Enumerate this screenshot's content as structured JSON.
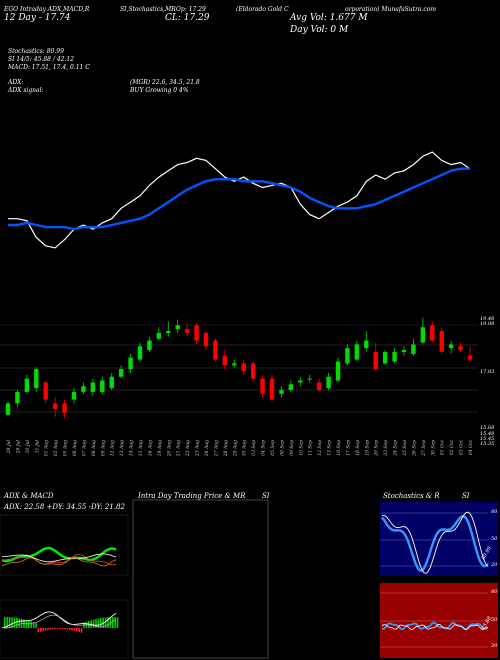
{
  "header": {
    "line1a": "EGO Intraday ADX,MACD,R",
    "line1b": "SI,Stochastics,MR",
    "line1c": "(Eldorado Gold C",
    "line1d": "orporation) MunafaSutra.com",
    "open_label": "Op: 17.29",
    "line2a": "12  Day - 17.74",
    "close_label": "CL: 17.29",
    "avg_vol": "Avg Vol: 1.677 M",
    "day_vol": "Day Vol: 0   M",
    "stoch_line": "Stochastics: 80.99",
    "si_line": "SI 14/5: 45.88 / 42.12",
    "macd_line": "MACD: 17.51, 17.4, 0.11 C",
    "adx_line": "ADX: ",
    "adx_values": "(MGR) 22.6, 34.5, 21.8",
    "adx_signal": "ADX  signal:",
    "adx_signal_val": "BUY Growing 0 4%"
  },
  "price_axis": {
    "label_top1": "19.48",
    "label_top2": "19.08",
    "label_mid": "17.03",
    "label_low1": "15.68",
    "label_low2": "15.48",
    "label_low3": "15.45",
    "label_low4": "15.35"
  },
  "dates": [
    "28 Jul",
    "29 Jul",
    "30 Jul",
    "31 Jul",
    "01 Aug",
    "02 Aug",
    "05 Aug",
    "06 Aug",
    "07 Aug",
    "08 Aug",
    "09 Aug",
    "12 Aug",
    "13 Aug",
    "14 Aug",
    "15 Aug",
    "16 Aug",
    "19 Aug",
    "20 Aug",
    "21 Aug",
    "22 Aug",
    "23 Aug",
    "26 Aug",
    "27 Aug",
    "28 Aug",
    "29 Aug",
    "30 Aug",
    "03 Sep",
    "04 Sep",
    "05 Sep",
    "06 Sep",
    "09 Sep",
    "10 Sep",
    "11 Sep",
    "12 Sep",
    "13 Sep",
    "16 Sep",
    "17 Sep",
    "18 Sep",
    "19 Sep",
    "20 Sep",
    "23 Sep",
    "24 Sep",
    "25 Sep",
    "26 Sep",
    "27 Sep",
    "30 Sep",
    "01 Oct",
    "02 Oct",
    "03 Oct",
    "04 Oct"
  ],
  "panels": {
    "adx_title": "ADX  & MACD",
    "adx_values": "ADX: 22.58  +DY: 34.55  -DY: 21.82",
    "mr_title": "Intra  Day Trading Price  & MR",
    "mr_si": "SI",
    "stoch_title": "Stochastics & R",
    "stoch_si": "SI",
    "stoch_tick_80": "80",
    "stoch_tick_50": "50",
    "stoch_tick_20": "20",
    "stoch_val": "80.99",
    "rsi_tick_80": "80",
    "rsi_tick_50": "50",
    "rsi_tick_20": "20",
    "rsi_val": "45.88"
  },
  "colors": {
    "bull": "#00dd00",
    "bear": "#ff0000",
    "ma": "#0055ff",
    "price_line": "#ffffff",
    "stoch_bg": "#000066",
    "rsi_bg": "#990000",
    "mr_border": "#555555"
  },
  "chart_data": [
    {
      "type": "line",
      "title": "EGO Intraday ADX,MACD,RSI,Stochastics,MRSI",
      "series": [
        {
          "values": [
            17.55,
            17.55,
            17.5,
            17.1,
            16.9,
            16.85,
            17.05,
            17.3,
            17.4,
            17.3,
            17.45,
            17.55,
            17.8,
            17.95,
            18.1,
            18.35,
            18.55,
            18.7,
            18.85,
            18.9,
            19.0,
            18.95,
            18.75,
            18.55,
            18.45,
            18.55,
            18.4,
            18.3,
            18.35,
            18.4,
            18.3,
            17.9,
            17.65,
            17.55,
            17.7,
            17.85,
            17.95,
            18.1,
            18.45,
            18.6,
            18.5,
            18.65,
            18.7,
            18.85,
            19.05,
            19.15,
            18.95,
            18.85,
            18.9,
            18.75
          ]
        },
        {
          "values": [
            17.4,
            17.4,
            17.45,
            17.4,
            17.35,
            17.35,
            17.35,
            17.3,
            17.35,
            17.35,
            17.35,
            17.4,
            17.45,
            17.5,
            17.55,
            17.65,
            17.8,
            17.95,
            18.1,
            18.25,
            18.35,
            18.45,
            18.5,
            18.5,
            18.5,
            18.45,
            18.45,
            18.45,
            18.4,
            18.35,
            18.3,
            18.2,
            18.05,
            17.95,
            17.85,
            17.8,
            17.8,
            17.8,
            17.85,
            17.9,
            18.0,
            18.1,
            18.2,
            18.3,
            18.4,
            18.5,
            18.6,
            18.7,
            18.75,
            18.75
          ]
        }
      ]
    },
    {
      "type": "bar",
      "title": "EGO daily candles",
      "categories": [
        "28 Jul",
        "29 Jul",
        "30 Jul",
        "31 Jul",
        "01 Aug",
        "02 Aug",
        "05 Aug",
        "06 Aug",
        "07 Aug",
        "08 Aug",
        "09 Aug",
        "12 Aug",
        "13 Aug",
        "14 Aug",
        "15 Aug",
        "16 Aug",
        "19 Aug",
        "20 Aug",
        "21 Aug",
        "22 Aug",
        "23 Aug",
        "26 Aug",
        "27 Aug",
        "28 Aug",
        "29 Aug",
        "30 Aug",
        "03 Sep",
        "04 Sep",
        "05 Sep",
        "06 Sep",
        "09 Sep",
        "10 Sep",
        "11 Sep",
        "12 Sep",
        "13 Sep",
        "16 Sep",
        "17 Sep",
        "18 Sep",
        "19 Sep",
        "20 Sep",
        "23 Sep",
        "24 Sep",
        "25 Sep",
        "26 Sep",
        "27 Sep",
        "30 Sep",
        "01 Oct",
        "02 Oct",
        "03 Oct",
        "04 Oct"
      ],
      "open": [
        15.9,
        16.2,
        16.5,
        16.6,
        16.75,
        16.2,
        16.2,
        16.3,
        16.5,
        16.5,
        16.5,
        16.6,
        16.9,
        17.1,
        17.35,
        17.6,
        17.9,
        18.05,
        18.15,
        18.15,
        18.25,
        18.05,
        17.85,
        17.45,
        17.2,
        17.25,
        17.25,
        16.85,
        16.85,
        16.45,
        16.55,
        16.75,
        16.85,
        16.75,
        16.6,
        16.8,
        17.25,
        17.35,
        17.65,
        17.55,
        17.25,
        17.3,
        17.55,
        17.5,
        17.8,
        18.25,
        18.1,
        17.65,
        17.7,
        17.45
      ],
      "close": [
        16.2,
        16.5,
        16.85,
        17.1,
        16.3,
        16.05,
        15.95,
        16.5,
        16.65,
        16.75,
        16.8,
        16.9,
        17.1,
        17.4,
        17.7,
        17.85,
        18.05,
        18.1,
        18.25,
        18.05,
        17.85,
        17.7,
        17.35,
        17.2,
        17.25,
        17.05,
        16.85,
        16.45,
        16.3,
        16.55,
        16.7,
        16.8,
        16.85,
        16.55,
        16.9,
        17.3,
        17.65,
        17.75,
        17.85,
        17.1,
        17.55,
        17.55,
        17.6,
        17.75,
        18.2,
        17.85,
        17.55,
        17.75,
        17.6,
        17.35
      ],
      "high": [
        16.25,
        16.55,
        16.95,
        17.15,
        16.8,
        16.35,
        16.3,
        16.6,
        16.75,
        16.85,
        16.9,
        17.0,
        17.2,
        17.5,
        17.8,
        17.95,
        18.2,
        18.35,
        18.4,
        18.3,
        18.3,
        18.1,
        17.9,
        17.6,
        17.35,
        17.35,
        17.3,
        16.95,
        16.95,
        16.65,
        16.8,
        16.9,
        16.95,
        16.85,
        17.0,
        17.4,
        17.75,
        17.85,
        18.1,
        17.8,
        17.6,
        17.65,
        17.7,
        17.9,
        18.45,
        18.35,
        18.2,
        17.85,
        17.8,
        17.7
      ],
      "low": [
        15.85,
        16.1,
        16.45,
        16.5,
        16.2,
        15.85,
        15.8,
        16.2,
        16.45,
        16.4,
        16.45,
        16.55,
        16.85,
        17.0,
        17.3,
        17.55,
        17.85,
        17.95,
        18.05,
        17.95,
        17.75,
        17.6,
        17.3,
        17.1,
        17.15,
        16.95,
        16.75,
        16.35,
        16.25,
        16.35,
        16.5,
        16.65,
        16.75,
        16.5,
        16.55,
        16.75,
        17.2,
        17.3,
        17.55,
        17.05,
        17.2,
        17.25,
        17.45,
        17.45,
        17.75,
        17.8,
        17.5,
        17.5,
        17.55,
        17.3
      ]
    }
  ]
}
